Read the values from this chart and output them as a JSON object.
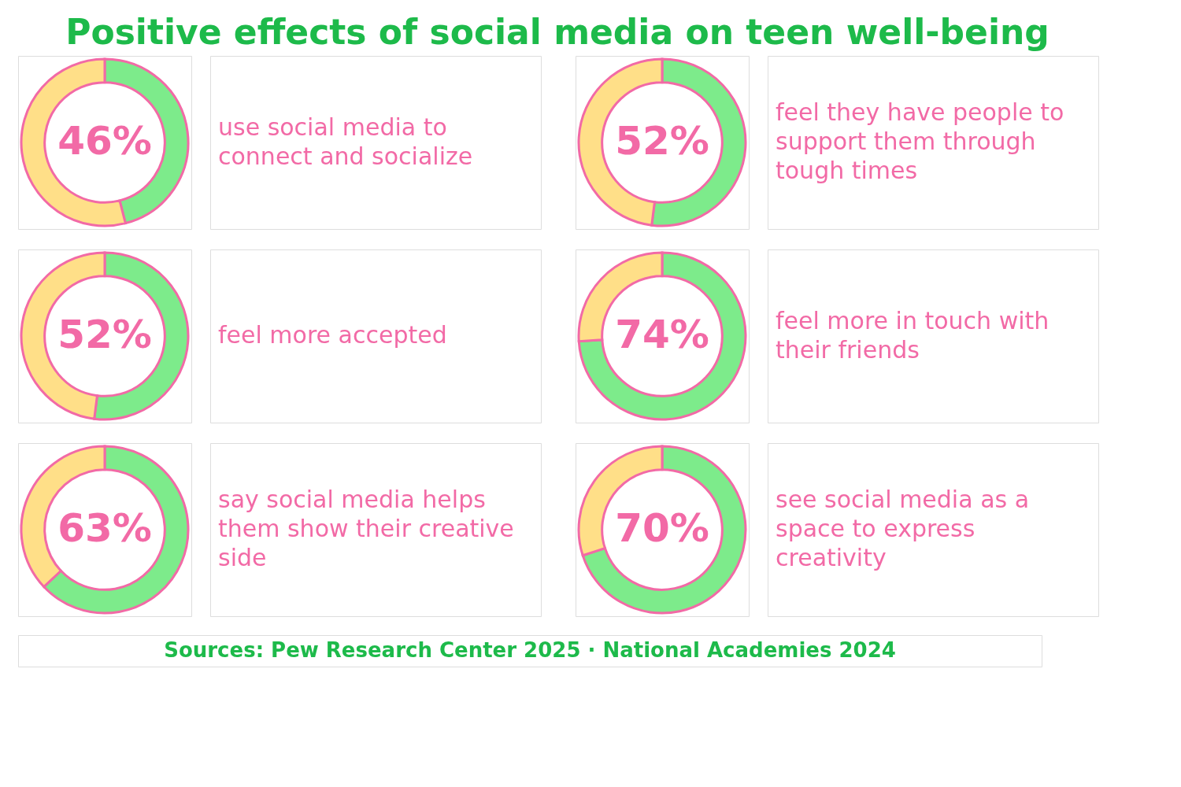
{
  "chart_data": [
    {
      "type": "donut",
      "title": "Positive effects of social media on teen well-being",
      "subtitle": "use social media to connect and socialize",
      "categories": [
        null,
        null
      ],
      "values": [
        46,
        54
      ],
      "colors": [
        "#7deb8b",
        "#ffdf88"
      ],
      "value_labels": [
        "46%",
        null
      ]
    },
    {
      "type": "donut",
      "subtitle": "feel they have people to support them through tough times",
      "categories": [
        null,
        null
      ],
      "values": [
        52,
        48
      ],
      "colors": [
        "#7deb8b",
        "#ffdf88"
      ],
      "value_labels": [
        "52%",
        null
      ]
    },
    {
      "type": "donut",
      "subtitle": "feel more accepted",
      "categories": [
        null,
        null
      ],
      "values": [
        52,
        48
      ],
      "colors": [
        "#7deb8b",
        "#ffdf88"
      ],
      "value_labels": [
        "52%",
        null
      ]
    },
    {
      "type": "donut",
      "subtitle": "feel more in touch with their friends",
      "categories": [
        null,
        null
      ],
      "values": [
        74,
        26
      ],
      "colors": [
        "#7deb8b",
        "#ffdf88"
      ],
      "value_labels": [
        "74%",
        null
      ]
    },
    {
      "type": "donut",
      "subtitle": "say social media helps them show their creative side",
      "categories": [
        null,
        null
      ],
      "values": [
        63,
        37
      ],
      "colors": [
        "#7deb8b",
        "#ffdf88"
      ],
      "value_labels": [
        "63%",
        null
      ]
    },
    {
      "type": "donut",
      "subtitle": "see social media as a space to express creativity",
      "categories": [
        null,
        null
      ],
      "values": [
        70,
        30
      ],
      "colors": [
        "#7deb8b",
        "#ffdf88"
      ],
      "value_labels": [
        "70%",
        null
      ]
    },
    {
      "type": "other",
      "annotations": [
        "Sources: Pew Research Center 2025 · National Academies 2024"
      ]
    }
  ]
}
